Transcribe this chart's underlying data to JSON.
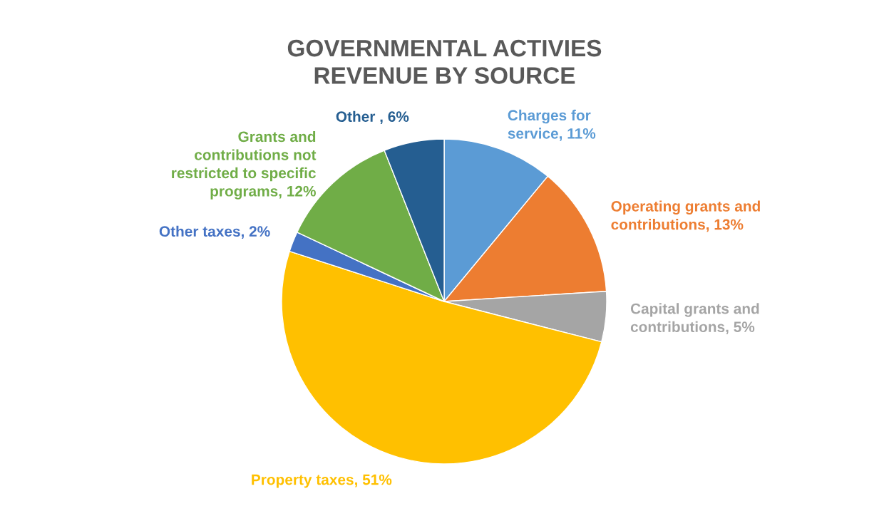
{
  "chart_data": {
    "type": "pie",
    "title": "GOVERNMENTAL ACTIVIES REVENUE BY SOURCE",
    "categories": [
      "Charges for service",
      "Operating grants and contributions",
      "Capital grants and contributions",
      "Property taxes",
      "Other taxes",
      "Grants and contributions not restricted to specific programs",
      "Other "
    ],
    "values": [
      11,
      13,
      5,
      51,
      2,
      12,
      6
    ],
    "colors": [
      "#5b9bd5",
      "#ed7d31",
      "#a5a5a5",
      "#ffc000",
      "#4472c4",
      "#70ad47",
      "#255e91"
    ],
    "value_labels": [
      "11%",
      "13%",
      "5%",
      "51%",
      "2%",
      "12%",
      "6%"
    ],
    "legend": false
  }
}
